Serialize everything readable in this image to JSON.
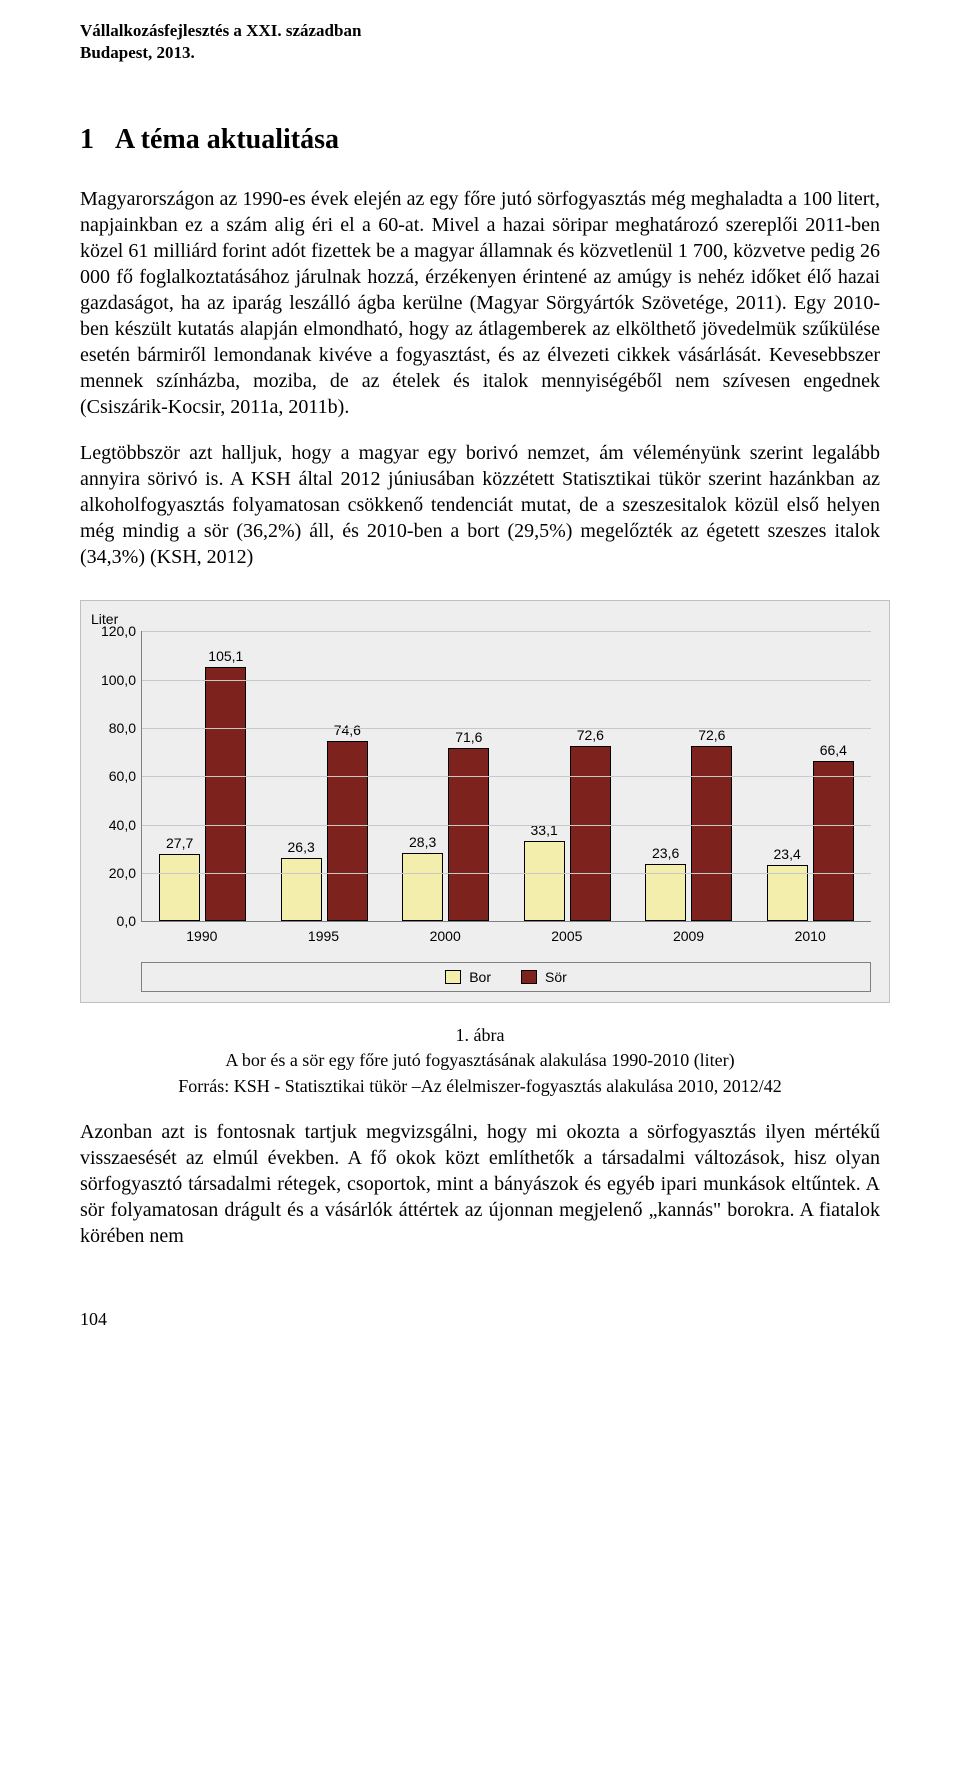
{
  "header": {
    "line1": "Vállalkozásfejlesztés a XXI. században",
    "line2": "Budapest, 2013."
  },
  "section": {
    "number": "1",
    "title": "A téma aktualitása"
  },
  "paragraphs": {
    "p1": "Magyarországon az 1990-es évek elején az egy főre jutó sörfogyasztás még meghaladta a 100 litert, napjainkban ez a szám alig éri el a 60-at. Mivel a hazai söripar meghatározó szereplői 2011-ben közel 61 milliárd forint adót fizettek be a magyar államnak és közvetlenül 1 700, közvetve pedig 26 000 fő foglalkoztatásához járulnak hozzá, érzékenyen érintené az amúgy is nehéz időket élő hazai gazdaságot, ha az iparág leszálló ágba kerülne (Magyar Sörgyártók Szövetége, 2011). Egy 2010-ben készült kutatás alapján elmondható, hogy az átlagemberek az elkölthető jövedelmük szűkülése esetén bármiről lemondanak kivéve a fogyasztást, és az élvezeti cikkek vásárlását. Kevesebbszer mennek színházba, moziba, de az ételek és italok mennyiségéből nem szívesen engednek (Csiszárik-Kocsir, 2011a, 2011b).",
    "p2": "Legtöbbször azt halljuk, hogy a magyar egy borivó nemzet, ám véleményünk szerint legalább annyira sörivó is. A KSH által 2012 júniusában közzétett Statisztikai tükör szerint hazánkban az alkoholfogyasztás folyamatosan csökkenő tendenciát mutat, de a szeszesitalok közül első helyen még mindig a sör (36,2%) áll, és 2010-ben a bort (29,5%) megelőzték az égetett szeszes italok (34,3%) (KSH, 2012)",
    "p3": "Azonban azt is fontosnak tartjuk megvizsgálni, hogy mi okozta a sörfogyasztás ilyen mértékű visszaesését az elmúl években. A fő okok közt említhetők a társadalmi változások, hisz olyan sörfogyasztó társadalmi rétegek, csoportok, mint a bányászok és egyéb ipari munkások eltűntek. A sör folyamatosan drágult és a vásárlók áttértek az újonnan megjelenő „kannás\" borokra. A fiatalok körében nem"
  },
  "chart": {
    "type": "bar",
    "y_axis_label": "Liter",
    "ylim_min": 0,
    "ylim_max": 120,
    "ytick_step": 20,
    "y_ticks": [
      "0,0",
      "20,0",
      "40,0",
      "60,0",
      "80,0",
      "100,0",
      "120,0"
    ],
    "categories": [
      "1990",
      "1995",
      "2000",
      "2005",
      "2009",
      "2010"
    ],
    "series": {
      "bor": {
        "label": "Bor",
        "color": "#f4eeac",
        "values": [
          27.7,
          26.3,
          28.3,
          33.1,
          23.6,
          23.4
        ],
        "value_labels": [
          "27,7",
          "26,3",
          "28,3",
          "33,1",
          "23,6",
          "23,4"
        ]
      },
      "sor": {
        "label": "Sör",
        "color": "#7d221d",
        "values": [
          105.1,
          74.6,
          71.6,
          72.6,
          72.6,
          66.4
        ],
        "value_labels": [
          "105,1",
          "74,6",
          "71,6",
          "72,6",
          "72,6",
          "66,4"
        ]
      }
    },
    "background_color": "#eeeeee",
    "grid_color": "#c8c8c8",
    "axis_color": "#808080",
    "text_color": "#000000",
    "label_fontsize": 14,
    "bar_border_color": "#000000"
  },
  "figure_caption": {
    "line1": "1. ábra",
    "line2": "A bor és a sör egy főre jutó fogyasztásának alakulása 1990-2010 (liter)",
    "line3": "Forrás: KSH - Statisztikai tükör –Az élelmiszer-fogyasztás alakulása 2010, 2012/42"
  },
  "page_number": "104"
}
